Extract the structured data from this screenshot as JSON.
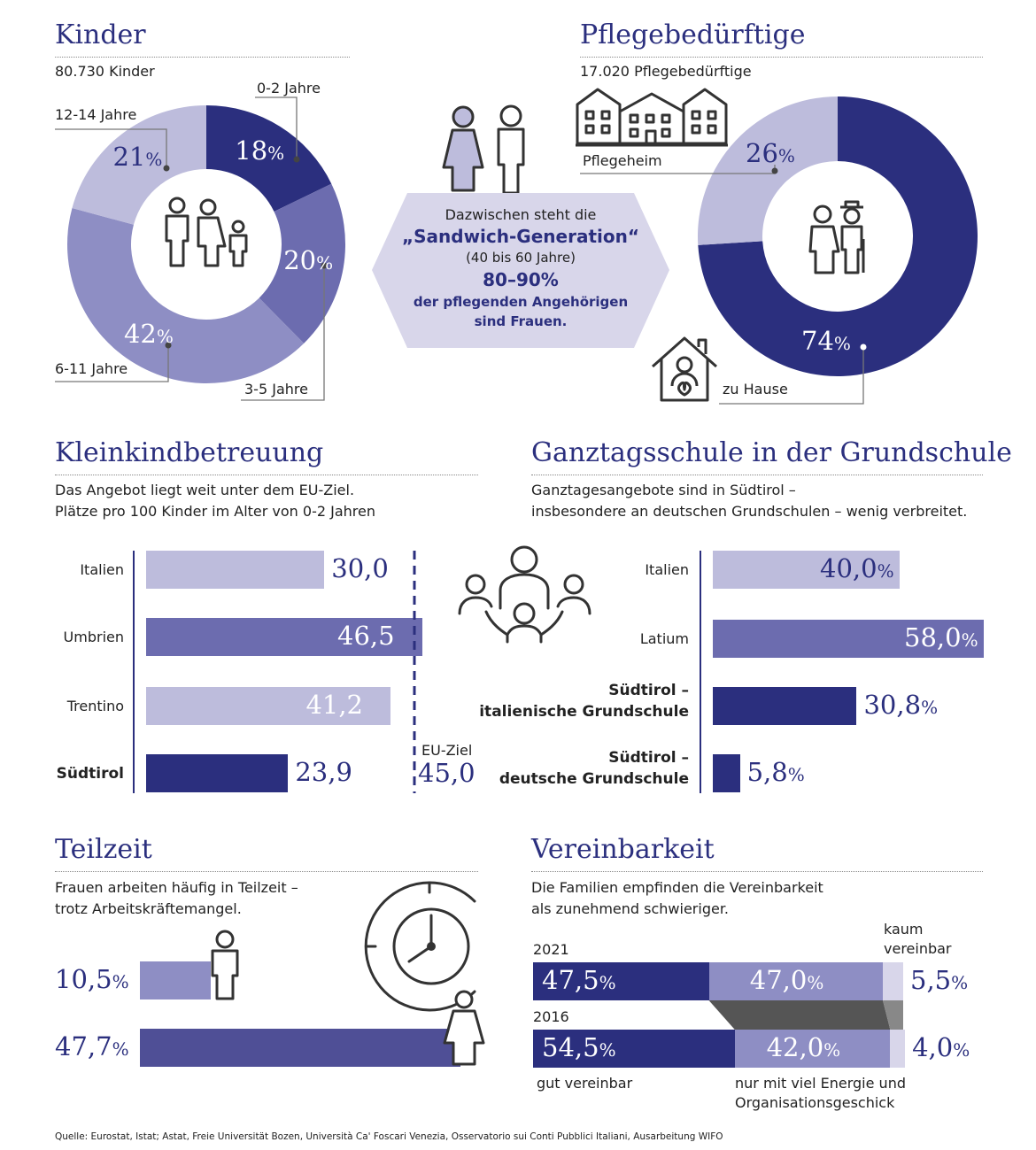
{
  "colors": {
    "navy": "#2b2f7e",
    "mid": "#6c6caf",
    "medium": "#8e8ec4",
    "light": "#bdbcdc",
    "hex": "#d8d6ea",
    "dark": "#555555"
  },
  "sections": {
    "kinder": {
      "title": "Kinder",
      "subtitle": "80.730 Kinder"
    },
    "pflege": {
      "title": "Pflegebedürftige",
      "subtitle": "17.020 Pflegebedürftige"
    },
    "sandwich": {
      "line1": "Dazwischen steht die",
      "line2": "„Sandwich-Generation“",
      "line3": "(40 bis 60 Jahre)",
      "line4": "80–90%",
      "line5": "der pflegenden Angehörigen",
      "line6": "sind Frauen."
    },
    "klein": {
      "title": "Kleinkindbetreuung",
      "sub1": "Das Angebot liegt weit unter dem EU-Ziel.",
      "sub2": "Plätze pro 100 Kinder im Alter von 0-2 Jahren",
      "target_label": "EU-Ziel",
      "target_value": "45,0"
    },
    "ganztag": {
      "title": "Ganztagsschule in der Grundschule",
      "sub1": "Ganztagesangebote sind in Südtirol –",
      "sub2": "insbesondere an deutschen Grundschulen – wenig verbreitet."
    },
    "teilzeit": {
      "title": "Teilzeit",
      "sub1": "Frauen arbeiten häufig in Teilzeit –",
      "sub2": "trotz Arbeitskräftemangel."
    },
    "verein": {
      "title": "Vereinbarkeit",
      "sub1": "Die Familien empfinden die Vereinbarkeit",
      "sub2": "als zunehmend schwieriger.",
      "kaum1": "kaum",
      "kaum2": "vereinbar",
      "gut": "gut vereinbar",
      "nur1": "nur mit viel Energie und",
      "nur2": "Organisationsgeschick"
    }
  },
  "source": "Quelle: Eurostat, Istat; Astat, Freie Universität Bozen, Università Ca' Foscari Venezia, Osservatorio sui Conti Pubblici Italiani, Ausarbeitung WIFO",
  "icons": [
    "family-icon",
    "man-icon",
    "woman-icon",
    "elderly-couple-icon",
    "nursing-home-icon",
    "home-care-icon",
    "group-icon",
    "clock-icon"
  ],
  "chart_data": [
    {
      "id": "kinder",
      "type": "pie",
      "title": "Kinder",
      "categories": [
        "0-2 Jahre",
        "3-5 Jahre",
        "6-11 Jahre",
        "12-14 Jahre"
      ],
      "values": [
        18,
        20,
        42,
        21
      ],
      "labels": [
        "18",
        "20",
        "42",
        "21"
      ],
      "unit": "%"
    },
    {
      "id": "pflege",
      "type": "pie",
      "title": "Pflegebedürftige",
      "categories": [
        "zu Hause",
        "Pflegeheim"
      ],
      "values": [
        74,
        26
      ],
      "labels": [
        "74",
        "26"
      ],
      "unit": "%"
    },
    {
      "id": "klein",
      "type": "bar",
      "title": "Kleinkindbetreuung",
      "categories": [
        "Italien",
        "Umbrien",
        "Trentino",
        "Südtirol"
      ],
      "values": [
        30.0,
        46.5,
        41.2,
        23.9
      ],
      "labels": [
        "30,0",
        "46,5",
        "41,2",
        "23,9"
      ],
      "target": 45.0
    },
    {
      "id": "ganztag",
      "type": "bar",
      "title": "Ganztagsschule in der Grundschule",
      "categories": [
        "Italien",
        "Latium",
        "Südtirol –|italienische Grundschule",
        "Südtirol –|deutsche Grundschule"
      ],
      "values": [
        40.0,
        58.0,
        30.8,
        5.8
      ],
      "labels": [
        "40,0",
        "58,0",
        "30,8",
        "5,8"
      ],
      "unit": "%"
    },
    {
      "id": "teilzeit",
      "type": "bar",
      "title": "Teilzeit",
      "values": [
        10.5,
        47.7
      ],
      "labels": [
        "10,5",
        "47,7"
      ],
      "unit": "%"
    },
    {
      "id": "verein",
      "type": "bar",
      "title": "Vereinbarkeit",
      "categories": [
        "2021",
        "2016"
      ],
      "series": [
        {
          "name": "gut vereinbar",
          "values": [
            47.5,
            54.5
          ],
          "labels": [
            "47,5",
            "54,5"
          ]
        },
        {
          "name": "nur mit viel Energie und Organisationsgeschick",
          "values": [
            47.0,
            42.0
          ],
          "labels": [
            "47,0",
            "42,0"
          ]
        },
        {
          "name": "kaum vereinbar",
          "values": [
            5.5,
            4.0
          ],
          "labels": [
            "5,5",
            "4,0"
          ]
        }
      ],
      "unit": "%"
    }
  ]
}
